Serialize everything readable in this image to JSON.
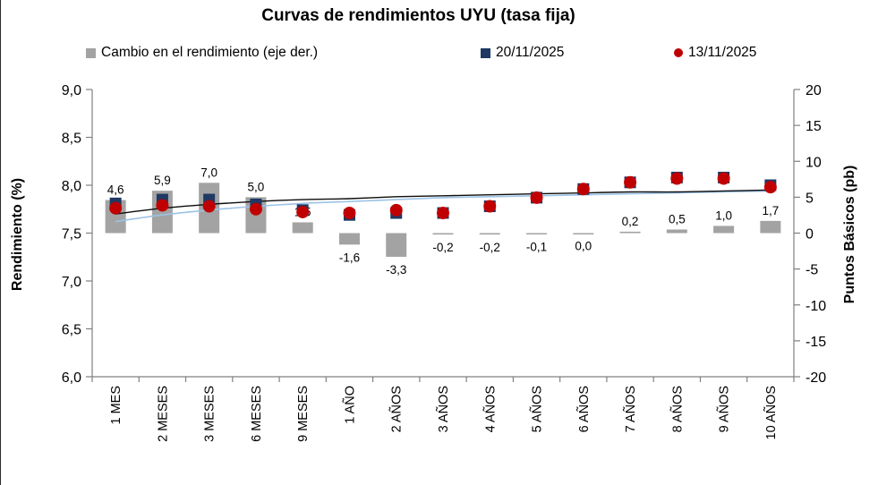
{
  "chart_data": {
    "type": "combo-bar-line-scatter",
    "title": "Curvas de rendimientos UYU (tasa fija)",
    "categories": [
      "1 MES",
      "2 MESES",
      "3 MESES",
      "6 MESES",
      "9 MESES",
      "1 AÑO",
      "2 AÑOS",
      "3 AÑOS",
      "4 AÑOS",
      "5 AÑOS",
      "6 AÑOS",
      "7 AÑOS",
      "8 AÑOS",
      "9 AÑOS",
      "10 AÑOS"
    ],
    "series": [
      {
        "name": "Cambio en el rendimiento (eje der.)",
        "type": "bar",
        "axis": "right",
        "unit": "pb",
        "color": "#A3A3A3",
        "values": [
          4.6,
          5.9,
          7.0,
          5.0,
          1.5,
          -1.6,
          -3.3,
          -0.2,
          -0.2,
          -0.1,
          0.0,
          0.2,
          0.5,
          1.0,
          1.7
        ],
        "labels": [
          "4,6",
          "5,9",
          "7,0",
          "5,0",
          "1,5",
          "-1,6",
          "-3,3",
          "-0,2",
          "-0,2",
          "-0,1",
          "0,0",
          "0,2",
          "0,5",
          "1,0",
          "1,7"
        ]
      },
      {
        "name": "20/11/2025",
        "type": "scatter-square",
        "axis": "left",
        "unit": "%",
        "color": "#1F3864",
        "values": [
          7.81,
          7.85,
          7.85,
          7.8,
          7.74,
          7.69,
          7.71,
          7.71,
          7.78,
          7.87,
          7.96,
          8.03,
          8.08,
          8.08,
          8.0
        ]
      },
      {
        "name": "13/11/2025",
        "type": "scatter-circle",
        "axis": "left",
        "unit": "%",
        "color": "#C00000",
        "values": [
          7.76,
          7.79,
          7.78,
          7.75,
          7.72,
          7.71,
          7.74,
          7.71,
          7.78,
          7.87,
          7.96,
          8.03,
          8.07,
          8.07,
          7.98
        ]
      },
      {
        "name": "curva suavizada 20/11/2025",
        "type": "line",
        "axis": "left",
        "unit": "%",
        "in_legend": false,
        "color": "#0D0D0D",
        "values": [
          7.7,
          7.76,
          7.8,
          7.83,
          7.85,
          7.86,
          7.88,
          7.89,
          7.9,
          7.91,
          7.92,
          7.93,
          7.93,
          7.94,
          7.95
        ]
      },
      {
        "name": "curva suavizada 13/11/2025",
        "type": "line",
        "axis": "left",
        "unit": "%",
        "in_legend": false,
        "color": "#9DC3E6",
        "values": [
          7.62,
          7.69,
          7.74,
          7.78,
          7.81,
          7.83,
          7.85,
          7.87,
          7.88,
          7.89,
          7.9,
          7.91,
          7.92,
          7.93,
          7.94
        ]
      }
    ],
    "left_axis": {
      "title": "Rendimiento (%)",
      "min": 6.0,
      "max": 9.0,
      "ticks": [
        "9,0",
        "8,5",
        "8,0",
        "7,5",
        "7,0",
        "6,5",
        "6,0"
      ]
    },
    "right_axis": {
      "title": "Puntos Básicos (pb)",
      "min": -20,
      "max": 20,
      "ticks": [
        "20",
        "15",
        "10",
        "5",
        "0",
        "-5",
        "-10",
        "-15",
        "-20"
      ]
    },
    "axis_color": "#808080",
    "text_color": "#000000",
    "grid": false,
    "legend_position": "top"
  }
}
